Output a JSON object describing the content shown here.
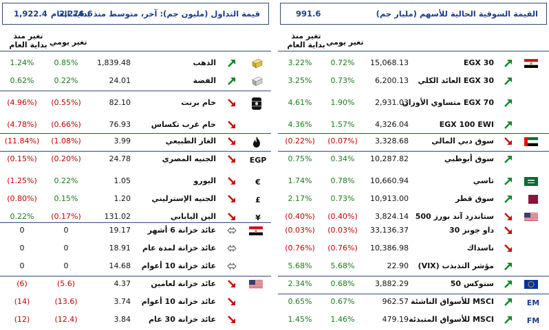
{
  "left": {
    "header": {
      "label": "قيمة التداول (مليون جم): آخر، متوسط منذ بداية العام",
      "v1": "2,276.6",
      "v2": "1,922.4"
    },
    "col_daily": "تغير يومي",
    "col_ytd_1": "تغير منذ",
    "col_ytd_2": "بداية العام",
    "rows": [
      {
        "name": "الذهب",
        "value": "1,839.48",
        "daily": "0.85%",
        "ytd": "1.24%",
        "dir": "up",
        "icon": "gold-bar-icon"
      },
      {
        "name": "الفضة",
        "value": "24.01",
        "daily": "0.22%",
        "ytd": "0.62%",
        "dir": "up",
        "icon": "silver-bar-icon"
      },
      {
        "name": "خام برنت",
        "value": "82.10",
        "daily": "(0.55%)",
        "ytd": "(4.96%)",
        "dir": "down",
        "icon": "oil-barrel-icon"
      },
      {
        "name": "خام غرب تكساس",
        "value": "76.93",
        "daily": "(0.66%)",
        "ytd": "(4.78%)",
        "dir": "down",
        "icon": ""
      },
      {
        "name": "الغاز الطبيعي",
        "value": "3.99",
        "daily": "(1.08%)",
        "ytd": "(11.84%)",
        "dir": "down",
        "icon": "gas-flame-icon"
      },
      {
        "name": "الجنيه المصري",
        "value": "24.78",
        "daily": "(0.20%)",
        "ytd": "(0.15%)",
        "dir": "down",
        "icon": "egp-icon",
        "icon_text": "EGP"
      },
      {
        "name": "اليورو",
        "value": "1.05",
        "daily": "0.22%",
        "ytd": "(1.25%)",
        "dir": "down",
        "icon": "euro-icon",
        "icon_text": "€"
      },
      {
        "name": "الجنيه الإسترليني",
        "value": "1.20",
        "daily": "0.15%",
        "ytd": "(0.80%)",
        "dir": "down",
        "icon": "pound-icon",
        "icon_text": "£"
      },
      {
        "name": "الين الياباني",
        "value": "131.02",
        "daily": "(0.17%)",
        "ytd": "0.22%",
        "dir": "down",
        "icon": "yen-icon",
        "icon_text": "¥"
      },
      {
        "name": "عائد خزانة 6 أشهر",
        "value": "19.17",
        "daily": "0",
        "ytd": "0",
        "dir": "flat",
        "icon": "egypt-flag-icon"
      },
      {
        "name": "عائد خزانة لمدة عام",
        "value": "18.91",
        "daily": "0",
        "ytd": "0",
        "dir": "flat",
        "icon": ""
      },
      {
        "name": "عائد خزانة 10 أعوام",
        "value": "14.68",
        "daily": "0",
        "ytd": "0",
        "dir": "flat",
        "icon": ""
      },
      {
        "name": "عائد خزانة لعامين",
        "value": "4.37",
        "daily": "(5.6)",
        "ytd": "(6)",
        "dir": "down",
        "icon": "usa-flag-icon"
      },
      {
        "name": "عائد خزانة 10 أعوام",
        "value": "3.74",
        "daily": "(13.6)",
        "ytd": "(14)",
        "dir": "down",
        "icon": ""
      },
      {
        "name": "عائد خزانة 30 عام",
        "value": "3.84",
        "daily": "(12.4)",
        "ytd": "(12)",
        "dir": "down",
        "icon": ""
      }
    ]
  },
  "right": {
    "header": {
      "label": "القيمة السوقية الحالية للأسهم (مليار جم)",
      "v1": "991.6"
    },
    "col_daily": "تغير يومي",
    "col_ytd_1": "تغير منذ",
    "col_ytd_2": "بداية العام",
    "rows": [
      {
        "name": "EGX 30",
        "value": "15,068.13",
        "daily": "0.72%",
        "ytd": "3.22%",
        "dir": "up",
        "icon": "egypt-flag-icon"
      },
      {
        "name": "EGX 30 العائد الكلي",
        "value": "6,200.13",
        "daily": "0.73%",
        "ytd": "3.25%",
        "dir": "up",
        "icon": ""
      },
      {
        "name": "EGX 70 متساوي الأوزان",
        "value": "2,931.03",
        "daily": "1.90%",
        "ytd": "4.61%",
        "dir": "up",
        "icon": ""
      },
      {
        "name": "EGX 100 EWI",
        "value": "4,326.04",
        "daily": "1.57%",
        "ytd": "4.36%",
        "dir": "up",
        "icon": ""
      },
      {
        "name": "سوق دبي المالي",
        "value": "3,328.68",
        "daily": "(0.07%)",
        "ytd": "(0.22%)",
        "dir": "down",
        "icon": "uae-flag-icon"
      },
      {
        "name": "سوق أبوظبي",
        "value": "10,287.82",
        "daily": "0.34%",
        "ytd": "0.75%",
        "dir": "up",
        "icon": ""
      },
      {
        "name": "تاسي",
        "value": "10,660.94",
        "daily": "0.78%",
        "ytd": "1.74%",
        "dir": "up",
        "icon": "saudi-flag-icon"
      },
      {
        "name": "سوق قطر",
        "value": "10,913.00",
        "daily": "0.73%",
        "ytd": "2.17%",
        "dir": "up",
        "icon": "qatar-flag-icon"
      },
      {
        "name": "ستاندرد آند بورز 500",
        "value": "3,824.14",
        "daily": "(0.40%)",
        "ytd": "(0.40%)",
        "dir": "down",
        "icon": "usa-flag-icon"
      },
      {
        "name": "داو جونز 30",
        "value": "33,136.37",
        "daily": "(0.03%)",
        "ytd": "(0.03%)",
        "dir": "down",
        "icon": ""
      },
      {
        "name": "ناسداك",
        "value": "10,386.98",
        "daily": "(0.76%)",
        "ytd": "(0.76%)",
        "dir": "down",
        "icon": ""
      },
      {
        "name": "مؤشر التذبذب (VIX)",
        "value": "22.90",
        "daily": "5.68%",
        "ytd": "5.68%",
        "dir": "up",
        "icon": ""
      },
      {
        "name": "ستوكس 50",
        "value": "3,882.29",
        "daily": "0.68%",
        "ytd": "2.34%",
        "dir": "up",
        "icon": "eu-flag-icon"
      },
      {
        "name": "MSCI للأسواق الناشئة",
        "value": "962.57",
        "daily": "0.67%",
        "ytd": "0.65%",
        "dir": "up",
        "icon": "em-label-icon",
        "icon_text": "EM"
      },
      {
        "name": "MSCI للأسواق المتبدئة",
        "value": "479.19",
        "daily": "1.46%",
        "ytd": "1.45%",
        "dir": "up",
        "icon": "fm-label-icon",
        "icon_text": "FM"
      }
    ]
  },
  "colors": {
    "up": "#1a7a1a",
    "down": "#c00000",
    "up_arrow": "#0c8a2a",
    "down_arrow": "#c81010",
    "accent": "#1c3d8a"
  }
}
